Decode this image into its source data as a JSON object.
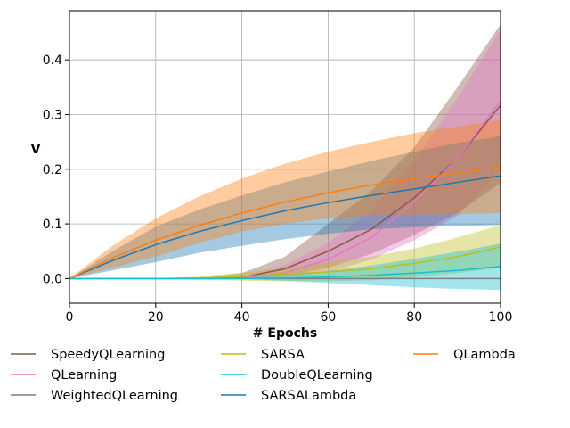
{
  "chart_data": {
    "type": "line",
    "xlabel": "# Epochs",
    "ylabel": "V",
    "xlim": [
      0,
      100
    ],
    "ylim": [
      -0.045,
      0.49
    ],
    "x_ticks": [
      0,
      20,
      40,
      60,
      80,
      100
    ],
    "y_ticks": [
      0.0,
      0.1,
      0.2,
      0.3,
      0.4
    ],
    "grid": true,
    "legend_position": "below",
    "x": [
      0,
      10,
      20,
      30,
      40,
      50,
      60,
      70,
      80,
      90,
      100
    ],
    "series": [
      {
        "name": "SpeedyQLearning",
        "color": "#8c564b",
        "values": [
          0,
          0,
          0,
          0,
          0.002,
          0.018,
          0.05,
          0.09,
          0.148,
          0.22,
          0.317
        ],
        "lower": [
          0,
          0,
          0,
          0,
          0,
          0.004,
          0.02,
          0.045,
          0.08,
          0.12,
          0.175
        ],
        "upper": [
          0,
          0,
          0,
          0,
          0.01,
          0.04,
          0.1,
          0.16,
          0.24,
          0.35,
          0.465
        ]
      },
      {
        "name": "QLearning",
        "color": "#e377c2",
        "values": [
          0,
          0,
          0,
          0,
          0.001,
          0.01,
          0.035,
          0.075,
          0.14,
          0.22,
          0.325
        ],
        "lower": [
          0,
          0,
          0,
          0,
          0,
          0.002,
          0.012,
          0.035,
          0.07,
          0.115,
          0.2
        ],
        "upper": [
          0,
          0,
          0,
          0,
          0.004,
          0.025,
          0.065,
          0.125,
          0.215,
          0.33,
          0.455
        ]
      },
      {
        "name": "WeightedQLearning",
        "color": "#7f7f7f",
        "values": [
          0,
          0,
          0,
          0,
          0,
          0,
          0,
          0,
          0,
          0,
          0
        ],
        "lower": [
          0,
          0,
          0,
          0,
          0,
          0,
          0,
          0,
          0,
          0,
          0
        ],
        "upper": [
          0,
          0,
          0,
          0,
          0,
          0,
          0,
          0,
          0,
          0,
          0
        ]
      },
      {
        "name": "SARSA",
        "color": "#bcbd22",
        "values": [
          0,
          0,
          0,
          0.001,
          0.004,
          0.008,
          0.012,
          0.018,
          0.028,
          0.04,
          0.058
        ],
        "lower": [
          0,
          0,
          0,
          -0.002,
          -0.004,
          -0.005,
          -0.005,
          -0.003,
          0.003,
          0.01,
          0.02
        ],
        "upper": [
          0,
          0,
          0,
          0.004,
          0.011,
          0.02,
          0.03,
          0.04,
          0.055,
          0.075,
          0.098
        ]
      },
      {
        "name": "DoubleQLearning",
        "color": "#17becf",
        "values": [
          0,
          0,
          0,
          0,
          0,
          0.001,
          0.003,
          0.006,
          0.01,
          0.015,
          0.022
        ],
        "lower": [
          0,
          0,
          0,
          0,
          -0.001,
          -0.004,
          -0.008,
          -0.012,
          -0.016,
          -0.019,
          -0.021
        ],
        "upper": [
          0,
          0,
          0,
          0,
          0.002,
          0.006,
          0.014,
          0.024,
          0.036,
          0.049,
          0.064
        ]
      },
      {
        "name": "SARSALambda",
        "color": "#1f77b4",
        "values": [
          0,
          0.033,
          0.062,
          0.086,
          0.106,
          0.124,
          0.139,
          0.152,
          0.164,
          0.176,
          0.188
        ],
        "lower": [
          0,
          0.015,
          0.03,
          0.047,
          0.06,
          0.072,
          0.082,
          0.09,
          0.094,
          0.096,
          0.098
        ],
        "upper": [
          0,
          0.05,
          0.095,
          0.126,
          0.152,
          0.176,
          0.196,
          0.215,
          0.232,
          0.248,
          0.26
        ]
      },
      {
        "name": "QLambda",
        "color": "#ff7f0e",
        "values": [
          0,
          0.038,
          0.07,
          0.097,
          0.12,
          0.14,
          0.157,
          0.171,
          0.183,
          0.193,
          0.203
        ],
        "lower": [
          0,
          0.02,
          0.04,
          0.065,
          0.086,
          0.1,
          0.11,
          0.115,
          0.117,
          0.118,
          0.12
        ],
        "upper": [
          0,
          0.06,
          0.11,
          0.15,
          0.183,
          0.21,
          0.232,
          0.25,
          0.266,
          0.278,
          0.29
        ]
      }
    ]
  }
}
